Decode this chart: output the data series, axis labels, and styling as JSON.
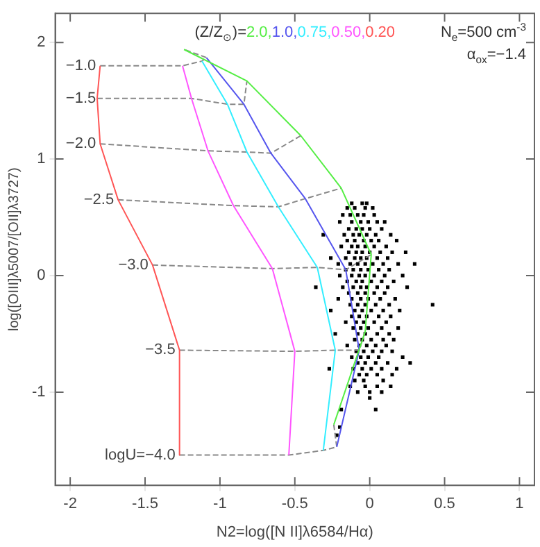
{
  "chart_data": {
    "type": "line",
    "xlabel": "N2=log([N II]λ6584/Hα)",
    "ylabel": "log([OIII]λ5007/[OII]λ3727)",
    "xlim": [
      -2.1,
      1.1
    ],
    "ylim": [
      -1.8,
      2.25
    ],
    "xticks": [
      -2,
      -1.5,
      -1,
      -0.5,
      0,
      0.5,
      1
    ],
    "yticks": [
      -1,
      0,
      1,
      2
    ],
    "grid": false,
    "legend": "top",
    "legend_title": "(Z/Z$_{⊙}$)=",
    "series": [
      {
        "name": "2.0,",
        "color": "#55ee44",
        "marker": "none",
        "x": [
          -1.24,
          -0.82,
          -0.46,
          -0.19,
          0.01,
          -0.03,
          -0.24
        ],
        "values": [
          1.94,
          1.67,
          1.2,
          0.75,
          0.18,
          -0.48,
          -1.28
        ]
      },
      {
        "name": "1.0,",
        "color": "#5555ee",
        "marker": "none",
        "x": [
          -1.09,
          -0.84,
          -0.66,
          -0.43,
          -0.16,
          -0.07,
          -0.22
        ],
        "values": [
          1.87,
          1.47,
          1.05,
          0.66,
          0.05,
          -0.64,
          -1.47
        ]
      },
      {
        "name": "0.75,",
        "color": "#33eeff",
        "marker": "none",
        "x": [
          -1.12,
          -0.95,
          -0.82,
          -0.61,
          -0.35,
          -0.23,
          -0.31
        ],
        "values": [
          1.84,
          1.47,
          1.06,
          0.59,
          0.07,
          -0.64,
          -1.5
        ]
      },
      {
        "name": "0.50,",
        "color": "#ff55ff",
        "marker": "none",
        "x": [
          -1.25,
          -1.19,
          -1.08,
          -0.91,
          -0.65,
          -0.5,
          -0.54
        ],
        "values": [
          1.8,
          1.52,
          1.07,
          0.6,
          0.06,
          -0.65,
          -1.54
        ]
      },
      {
        "name": "0.20",
        "color": "#ff5555",
        "marker": "none",
        "x": [
          -1.8,
          -1.82,
          -1.8,
          -1.68,
          -1.45,
          -1.27,
          -1.27
        ],
        "values": [
          1.8,
          1.52,
          1.13,
          0.65,
          0.09,
          -0.64,
          -1.54
        ]
      },
      {
        "color": "#888888",
        "marker": "none",
        "line_style": "dashed",
        "x": [
          -1.8,
          -1.25,
          -1.12,
          -1.09,
          -1.24
        ],
        "values": [
          1.8,
          1.8,
          1.84,
          1.87,
          1.94
        ]
      },
      {
        "color": "#888888",
        "marker": "none",
        "line_style": "dashed",
        "x": [
          -1.82,
          -1.19,
          -0.95,
          -0.84,
          -0.82
        ],
        "values": [
          1.52,
          1.52,
          1.47,
          1.47,
          1.67
        ]
      },
      {
        "color": "#888888",
        "marker": "none",
        "line_style": "dashed",
        "x": [
          -1.8,
          -1.08,
          -0.82,
          -0.66,
          -0.46
        ],
        "values": [
          1.13,
          1.07,
          1.06,
          1.05,
          1.2
        ]
      },
      {
        "color": "#888888",
        "marker": "none",
        "line_style": "dashed",
        "x": [
          -1.68,
          -0.91,
          -0.61,
          -0.43,
          -0.19
        ],
        "values": [
          0.65,
          0.6,
          0.59,
          0.66,
          0.75
        ]
      },
      {
        "color": "#888888",
        "marker": "none",
        "line_style": "dashed",
        "x": [
          -1.45,
          -0.65,
          -0.35,
          -0.16,
          0.01
        ],
        "values": [
          0.09,
          0.06,
          0.07,
          0.05,
          0.18
        ]
      },
      {
        "color": "#888888",
        "marker": "none",
        "line_style": "dashed",
        "x": [
          -1.27,
          -0.5,
          -0.23,
          -0.07,
          -0.03
        ],
        "values": [
          -0.64,
          -0.65,
          -0.64,
          -0.64,
          -0.48
        ]
      },
      {
        "color": "#888888",
        "marker": "none",
        "line_style": "dashed",
        "x": [
          -1.27,
          -0.54,
          -0.31,
          -0.22,
          -0.24
        ],
        "values": [
          -1.54,
          -1.54,
          -1.5,
          -1.47,
          -1.28
        ]
      },
      {
        "type": "scatter",
        "color": "#000000",
        "marker": "square",
        "x": [
          -0.12,
          -0.05,
          -0.02,
          -0.15,
          -0.1,
          -0.03,
          0.02,
          -0.18,
          -0.13,
          -0.08,
          -0.04,
          0.03,
          -0.2,
          -0.12,
          -0.06,
          -0.01,
          0.05,
          0.1,
          -0.14,
          -0.09,
          -0.05,
          0.0,
          0.08,
          -0.31,
          -0.17,
          -0.11,
          -0.07,
          -0.02,
          0.04,
          0.14,
          -0.15,
          -0.1,
          -0.04,
          0.01,
          0.06,
          0.18,
          -0.19,
          -0.12,
          -0.08,
          -0.03,
          0.03,
          0.11,
          -0.14,
          -0.09,
          -0.05,
          0.0,
          0.07,
          0.15,
          0.24,
          -0.26,
          -0.16,
          -0.1,
          -0.06,
          -0.02,
          0.05,
          0.12,
          -0.21,
          -0.13,
          -0.08,
          -0.03,
          0.02,
          0.09,
          0.19,
          0.3,
          -0.16,
          -0.11,
          -0.06,
          -0.01,
          0.06,
          0.13,
          -0.2,
          -0.12,
          -0.07,
          -0.03,
          0.03,
          0.1,
          0.22,
          -0.15,
          -0.09,
          -0.05,
          0.01,
          0.08,
          0.16,
          -0.36,
          -0.18,
          -0.11,
          -0.06,
          -0.02,
          0.05,
          0.12,
          0.25,
          -0.14,
          -0.08,
          -0.03,
          0.03,
          0.1,
          -0.21,
          -0.12,
          -0.06,
          -0.01,
          0.07,
          0.17,
          -0.13,
          -0.08,
          -0.03,
          0.04,
          0.13,
          0.42,
          -0.26,
          -0.1,
          -0.05,
          0.01,
          0.09,
          0.2,
          -0.12,
          -0.07,
          -0.02,
          0.06,
          0.14,
          -0.16,
          -0.09,
          -0.04,
          0.03,
          0.11,
          -0.11,
          -0.06,
          -0.01,
          0.08,
          0.19,
          -0.23,
          -0.08,
          -0.03,
          0.05,
          0.13,
          -0.1,
          -0.05,
          0.01,
          0.09,
          0.16,
          -0.15,
          -0.07,
          -0.02,
          0.04,
          0.11,
          -0.09,
          -0.04,
          0.02,
          0.08,
          0.15,
          -0.12,
          -0.06,
          -0.01,
          0.06,
          0.22,
          -0.08,
          -0.03,
          0.04,
          0.12,
          0.27,
          -0.27,
          -0.11,
          -0.05,
          0.01,
          0.08,
          0.18,
          -0.07,
          -0.02,
          0.05,
          0.15,
          -0.1,
          -0.04,
          0.09,
          -0.13,
          -0.03,
          0.05,
          0.14,
          -0.08,
          0.0,
          0.08,
          0.0,
          -0.19,
          0.04,
          -0.2,
          -0.22
        ],
        "values": [
          0.62,
          0.62,
          0.62,
          0.58,
          0.58,
          0.58,
          0.58,
          0.52,
          0.52,
          0.52,
          0.52,
          0.52,
          0.46,
          0.46,
          0.46,
          0.46,
          0.46,
          0.46,
          0.4,
          0.4,
          0.4,
          0.4,
          0.4,
          0.35,
          0.35,
          0.35,
          0.35,
          0.35,
          0.35,
          0.35,
          0.3,
          0.3,
          0.3,
          0.3,
          0.3,
          0.3,
          0.25,
          0.25,
          0.25,
          0.25,
          0.25,
          0.25,
          0.2,
          0.2,
          0.2,
          0.2,
          0.2,
          0.2,
          0.2,
          0.15,
          0.15,
          0.15,
          0.15,
          0.15,
          0.15,
          0.15,
          0.1,
          0.1,
          0.1,
          0.1,
          0.1,
          0.1,
          0.1,
          0.1,
          0.05,
          0.05,
          0.05,
          0.05,
          0.05,
          0.05,
          0.0,
          0.0,
          0.0,
          0.0,
          0.0,
          0.0,
          0.0,
          -0.05,
          -0.05,
          -0.05,
          -0.05,
          -0.05,
          -0.05,
          -0.1,
          -0.1,
          -0.1,
          -0.1,
          -0.1,
          -0.1,
          -0.1,
          -0.1,
          -0.15,
          -0.15,
          -0.15,
          -0.15,
          -0.15,
          -0.2,
          -0.2,
          -0.2,
          -0.2,
          -0.2,
          -0.2,
          -0.25,
          -0.25,
          -0.25,
          -0.25,
          -0.25,
          -0.25,
          -0.3,
          -0.3,
          -0.3,
          -0.3,
          -0.3,
          -0.3,
          -0.35,
          -0.35,
          -0.35,
          -0.35,
          -0.35,
          -0.4,
          -0.4,
          -0.4,
          -0.4,
          -0.4,
          -0.45,
          -0.45,
          -0.45,
          -0.45,
          -0.45,
          -0.5,
          -0.5,
          -0.5,
          -0.5,
          -0.5,
          -0.55,
          -0.55,
          -0.55,
          -0.55,
          -0.55,
          -0.6,
          -0.6,
          -0.6,
          -0.6,
          -0.6,
          -0.65,
          -0.65,
          -0.65,
          -0.65,
          -0.65,
          -0.7,
          -0.7,
          -0.7,
          -0.7,
          -0.7,
          -0.75,
          -0.75,
          -0.75,
          -0.75,
          -0.75,
          -0.8,
          -0.8,
          -0.8,
          -0.8,
          -0.8,
          -0.8,
          -0.85,
          -0.85,
          -0.85,
          -0.85,
          -0.9,
          -0.9,
          -0.9,
          -0.95,
          -0.95,
          -0.95,
          -0.95,
          -1.0,
          -1.0,
          -1.0,
          -1.05,
          -1.15,
          -1.15,
          -1.3,
          -1.37
        ]
      }
    ],
    "annotations": [
      "N$_{e}$=500 cm$^{-3}$",
      "α$_{ox}$=−1.4",
      {
        "text": "−1.0",
        "x": -1.8,
        "y": 1.8
      },
      {
        "text": "−1.5",
        "x": -1.8,
        "y": 1.52
      },
      {
        "text": "−2.0",
        "x": -1.8,
        "y": 1.13
      },
      {
        "text": "−2.5",
        "x": -1.68,
        "y": 0.65
      },
      {
        "text": "−3.0",
        "x": -1.45,
        "y": 0.09
      },
      {
        "text": "−3.5",
        "x": -1.27,
        "y": -0.64
      },
      {
        "text": "logU=−4.0",
        "x": -1.27,
        "y": -1.54
      }
    ]
  }
}
